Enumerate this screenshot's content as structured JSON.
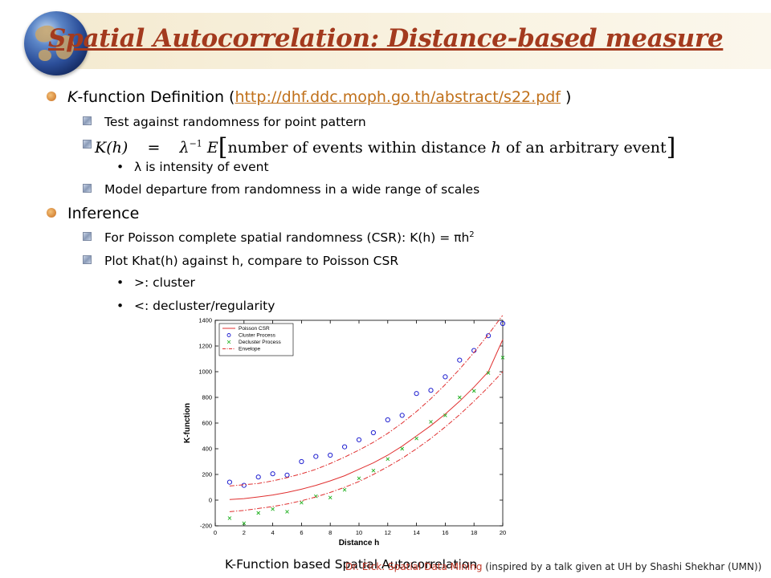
{
  "title": "Spatial Autocorrelation: Distance-based measure",
  "bullets": {
    "kfunc": {
      "prefix": "K",
      "text": "-function Definition (",
      "link": "http://dhf.ddc.moph.go.th/abstract/s22.pdf",
      "close": " )"
    },
    "test": "Test against randomness for point pattern",
    "formula": {
      "lhs": "K(h)",
      "eq": "=",
      "lambda": "λ",
      "inv": "−1",
      "E": "E",
      "lb": "[",
      "body1": "number of events within distance ",
      "h": "h",
      "body2": " of an arbitrary event",
      "rb": "]"
    },
    "lambda_note": "λ is intensity of event",
    "model": "Model departure from randomness in a wide range of scales",
    "inference": "Inference",
    "poisson_prefix": "For Poisson complete spatial randomness (CSR): K(h) = πh",
    "poisson_sup": "2",
    "plot": "Plot Khat(h) against h, compare to Poisson CSR",
    "cluster": ">: cluster",
    "decluster": "<: decluster/regularity"
  },
  "caption": "K-Function based Spatial Autocorrelation",
  "footer": {
    "red": "Dr. Eick: Spatial Data Mining",
    "rest": " (inspired by a talk given at UH by Shashi Shekhar (UMN))"
  },
  "icons": {
    "logo": "globe-icon",
    "level1": "orange-round-bullet",
    "level2": "grey-square-bullet",
    "level3": "dot-bullet"
  },
  "chart_data": {
    "type": "scatter",
    "xlabel": "Distance h",
    "ylabel": "K-function",
    "xlim": [
      0,
      20
    ],
    "ylim": [
      -200,
      1400
    ],
    "xticks": [
      0,
      2,
      4,
      6,
      8,
      10,
      12,
      14,
      16,
      18,
      20
    ],
    "yticks": [
      -200,
      0,
      200,
      400,
      600,
      800,
      1000,
      1200,
      1400
    ],
    "legend_position": "top-left",
    "colors": {
      "csr": "#e03030",
      "cluster": "#2020d0",
      "decluster": "#20b020",
      "envelope": "#e03030"
    },
    "series": [
      {
        "name": "Poisson CSR",
        "style": "line",
        "x": [
          1,
          2,
          3,
          4,
          5,
          6,
          7,
          8,
          9,
          10,
          11,
          12,
          13,
          14,
          15,
          16,
          17,
          18,
          19,
          20
        ],
        "values": [
          5,
          12,
          25,
          40,
          60,
          85,
          115,
          150,
          190,
          240,
          290,
          350,
          420,
          500,
          580,
          670,
          770,
          880,
          1000,
          1250
        ]
      },
      {
        "name": "Cluster Process",
        "style": "circle",
        "x": [
          1,
          2,
          3,
          4,
          5,
          6,
          7,
          8,
          9,
          10,
          11,
          12,
          13,
          14,
          15,
          16,
          17,
          18,
          19,
          20
        ],
        "values": [
          140,
          115,
          180,
          205,
          195,
          300,
          340,
          350,
          415,
          470,
          525,
          625,
          660,
          830,
          855,
          960,
          1090,
          1165,
          1280,
          1375
        ]
      },
      {
        "name": "Decluster Process",
        "style": "cross",
        "x": [
          1,
          2,
          3,
          4,
          5,
          6,
          7,
          8,
          9,
          10,
          11,
          12,
          13,
          14,
          15,
          16,
          17,
          18,
          19,
          20
        ],
        "values": [
          -140,
          -180,
          -100,
          -70,
          -90,
          -20,
          30,
          20,
          80,
          170,
          230,
          320,
          400,
          480,
          610,
          660,
          800,
          850,
          990,
          1110
        ]
      },
      {
        "name": "Envelope",
        "style": "dashdot",
        "x": [
          1,
          2,
          3,
          4,
          5,
          6,
          7,
          8,
          9,
          10,
          11,
          12,
          13,
          14,
          15,
          16,
          17,
          18,
          19,
          20
        ],
        "values": [
          110,
          120,
          130,
          150,
          175,
          205,
          240,
          285,
          335,
          390,
          450,
          520,
          600,
          690,
          790,
          900,
          1020,
          1150,
          1290,
          1440
        ]
      },
      {
        "name": "",
        "style": "dashdot",
        "x": [
          1,
          2,
          3,
          4,
          5,
          6,
          7,
          8,
          9,
          10,
          11,
          12,
          13,
          14,
          15,
          16,
          17,
          18,
          19,
          20
        ],
        "values": [
          -90,
          -80,
          -65,
          -50,
          -30,
          -5,
          25,
          60,
          100,
          145,
          200,
          260,
          325,
          400,
          480,
          570,
          665,
          770,
          880,
          1000
        ]
      }
    ]
  }
}
